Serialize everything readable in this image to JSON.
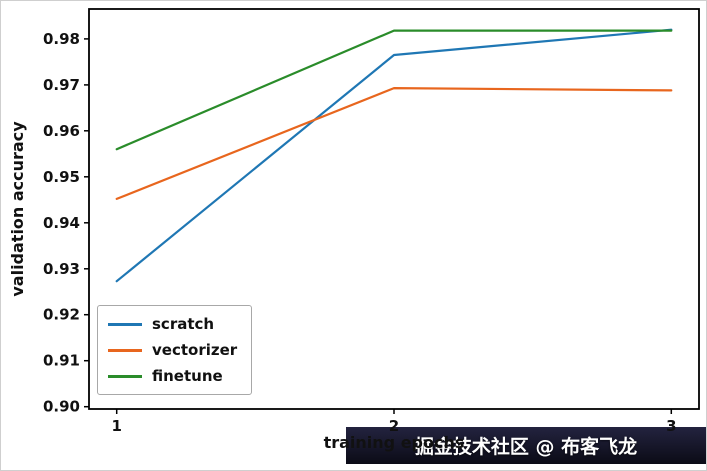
{
  "chart_data": {
    "type": "line",
    "title": "",
    "xlabel": "training epochs",
    "ylabel": "validation accuracy",
    "x": [
      1,
      2,
      3
    ],
    "xticks": [
      1,
      2,
      3
    ],
    "yticks": [
      0.9,
      0.91,
      0.92,
      0.93,
      0.94,
      0.95,
      0.96,
      0.97,
      0.98
    ],
    "xlim": [
      0.9,
      3.1
    ],
    "ylim": [
      0.8995,
      0.9865
    ],
    "grid": false,
    "legend_position": "lower left",
    "series": [
      {
        "name": "scratch",
        "color": "#1f77b4",
        "values": [
          0.9273,
          0.9765,
          0.982
        ]
      },
      {
        "name": "vectorizer",
        "color": "#e8661e",
        "values": [
          0.9452,
          0.9693,
          0.9688
        ]
      },
      {
        "name": "finetune",
        "color": "#2a8c2a",
        "values": [
          0.956,
          0.9818,
          0.9818
        ]
      }
    ]
  },
  "watermark": {
    "text": "掘金技术社区 @ 布客飞龙",
    "background": "#14142a",
    "text_color": "#ffffff"
  }
}
